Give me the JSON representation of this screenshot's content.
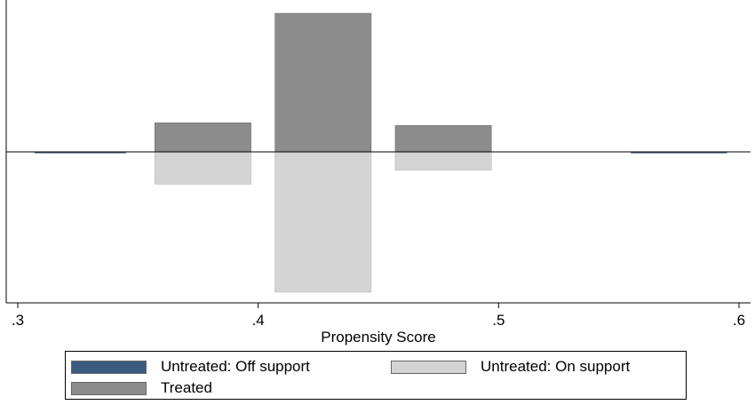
{
  "chart_data": {
    "type": "bar",
    "xlabel": "Propensity Score",
    "ylabel": "",
    "xlim": [
      0.3,
      0.6
    ],
    "xticks": [
      0.3,
      0.4,
      0.5,
      0.6
    ],
    "xtick_labels": [
      ".3",
      ".4",
      ".5",
      ".6"
    ],
    "ylim": [
      -1,
      1
    ],
    "legend_position": "bottom",
    "series": [
      {
        "name": "Untreated: Off support",
        "color": "#3b5a80",
        "direction": "down",
        "bins": [
          {
            "x0": 0.307,
            "x1": 0.345,
            "value": 0.01
          },
          {
            "x0": 0.555,
            "x1": 0.595,
            "value": 0.01
          }
        ]
      },
      {
        "name": "Untreated: On support",
        "color": "#d4d4d4",
        "direction": "down",
        "bins": [
          {
            "x0": 0.357,
            "x1": 0.397,
            "value": 0.23
          },
          {
            "x0": 0.407,
            "x1": 0.447,
            "value": 1.0
          },
          {
            "x0": 0.457,
            "x1": 0.497,
            "value": 0.13
          }
        ]
      },
      {
        "name": "Treated",
        "color": "#8c8c8c",
        "direction": "up",
        "bins": [
          {
            "x0": 0.357,
            "x1": 0.397,
            "value": 0.21
          },
          {
            "x0": 0.407,
            "x1": 0.447,
            "value": 1.0
          },
          {
            "x0": 0.457,
            "x1": 0.497,
            "value": 0.19
          }
        ]
      }
    ]
  },
  "legend": {
    "items": [
      {
        "label": "Untreated: Off support",
        "color": "#3b5a80"
      },
      {
        "label": "Untreated: On support",
        "color": "#d4d4d4"
      },
      {
        "label": "Treated",
        "color": "#8c8c8c"
      }
    ]
  }
}
